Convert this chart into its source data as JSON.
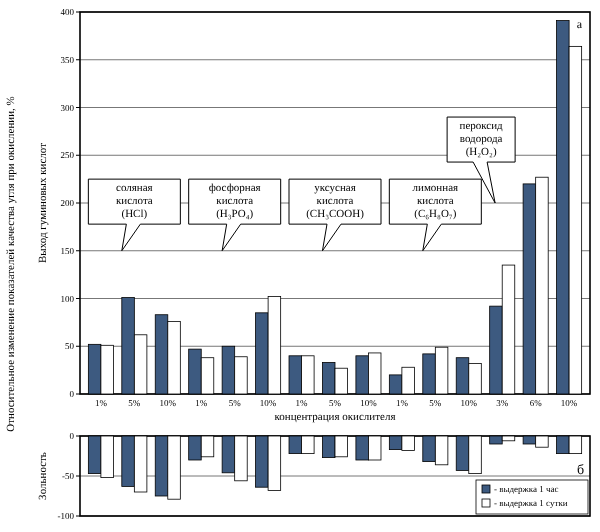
{
  "chart_data": [
    {
      "type": "bar",
      "ylabel": "Выход гуминовых кислот",
      "xlabel": "концентрация окислителя",
      "categories": [
        "1%",
        "5%",
        "10%",
        "1%",
        "5%",
        "10%",
        "1%",
        "5%",
        "10%",
        "1%",
        "5%",
        "10%",
        "3%",
        "6%",
        "10%"
      ],
      "series": [
        {
          "color": "#3d5a80",
          "values": [
            52,
            101,
            83,
            47,
            50,
            85,
            40,
            33,
            40,
            20,
            42,
            38,
            92,
            220,
            391
          ]
        },
        {
          "color": "#ffffff",
          "values": [
            51,
            62,
            76,
            38,
            39,
            102,
            40,
            27,
            43,
            28,
            49,
            32,
            135,
            227,
            364
          ]
        }
      ],
      "ylim": [
        0,
        400
      ],
      "yticks": [
        0,
        50,
        100,
        150,
        200,
        250,
        300,
        350,
        400
      ],
      "grid": "y",
      "legend": false,
      "annotations": [
        "Относительное изменение показателей качества угля при окислении, %",
        "а",
        "соляная кислота (HCl)",
        "фосфорная кислота (H₃PO₄)",
        "уксусная кислота (CH₃COOH)",
        "лимонная кислота (C₆H₈O₇)",
        "пероксид водорода (H₂O₂)"
      ]
    },
    {
      "type": "bar",
      "ylabel": "Зольность",
      "categories": [
        null,
        null,
        null,
        null,
        null,
        null,
        null,
        null,
        null,
        null,
        null,
        null,
        null,
        null,
        null
      ],
      "series": [
        {
          "name": "- выдержка 1 час",
          "color": "#3d5a80",
          "values": [
            -47,
            -63,
            -75,
            -30,
            -46,
            -64,
            -22,
            -27,
            -30,
            -17,
            -32,
            -43,
            -10,
            -10,
            -22
          ]
        },
        {
          "name": "- выдержка 1 сутки",
          "color": "#ffffff",
          "values": [
            -52,
            -70,
            -79,
            -26,
            -56,
            -68,
            -22,
            -26,
            -30,
            -18,
            -36,
            -47,
            -6,
            -14,
            -22
          ]
        }
      ],
      "ylim": [
        -100,
        0
      ],
      "yticks": [
        -100,
        -50,
        0
      ],
      "grid": "y",
      "tick_labels": "y",
      "legend": "bottom right",
      "annotations": [
        "б"
      ]
    }
  ]
}
